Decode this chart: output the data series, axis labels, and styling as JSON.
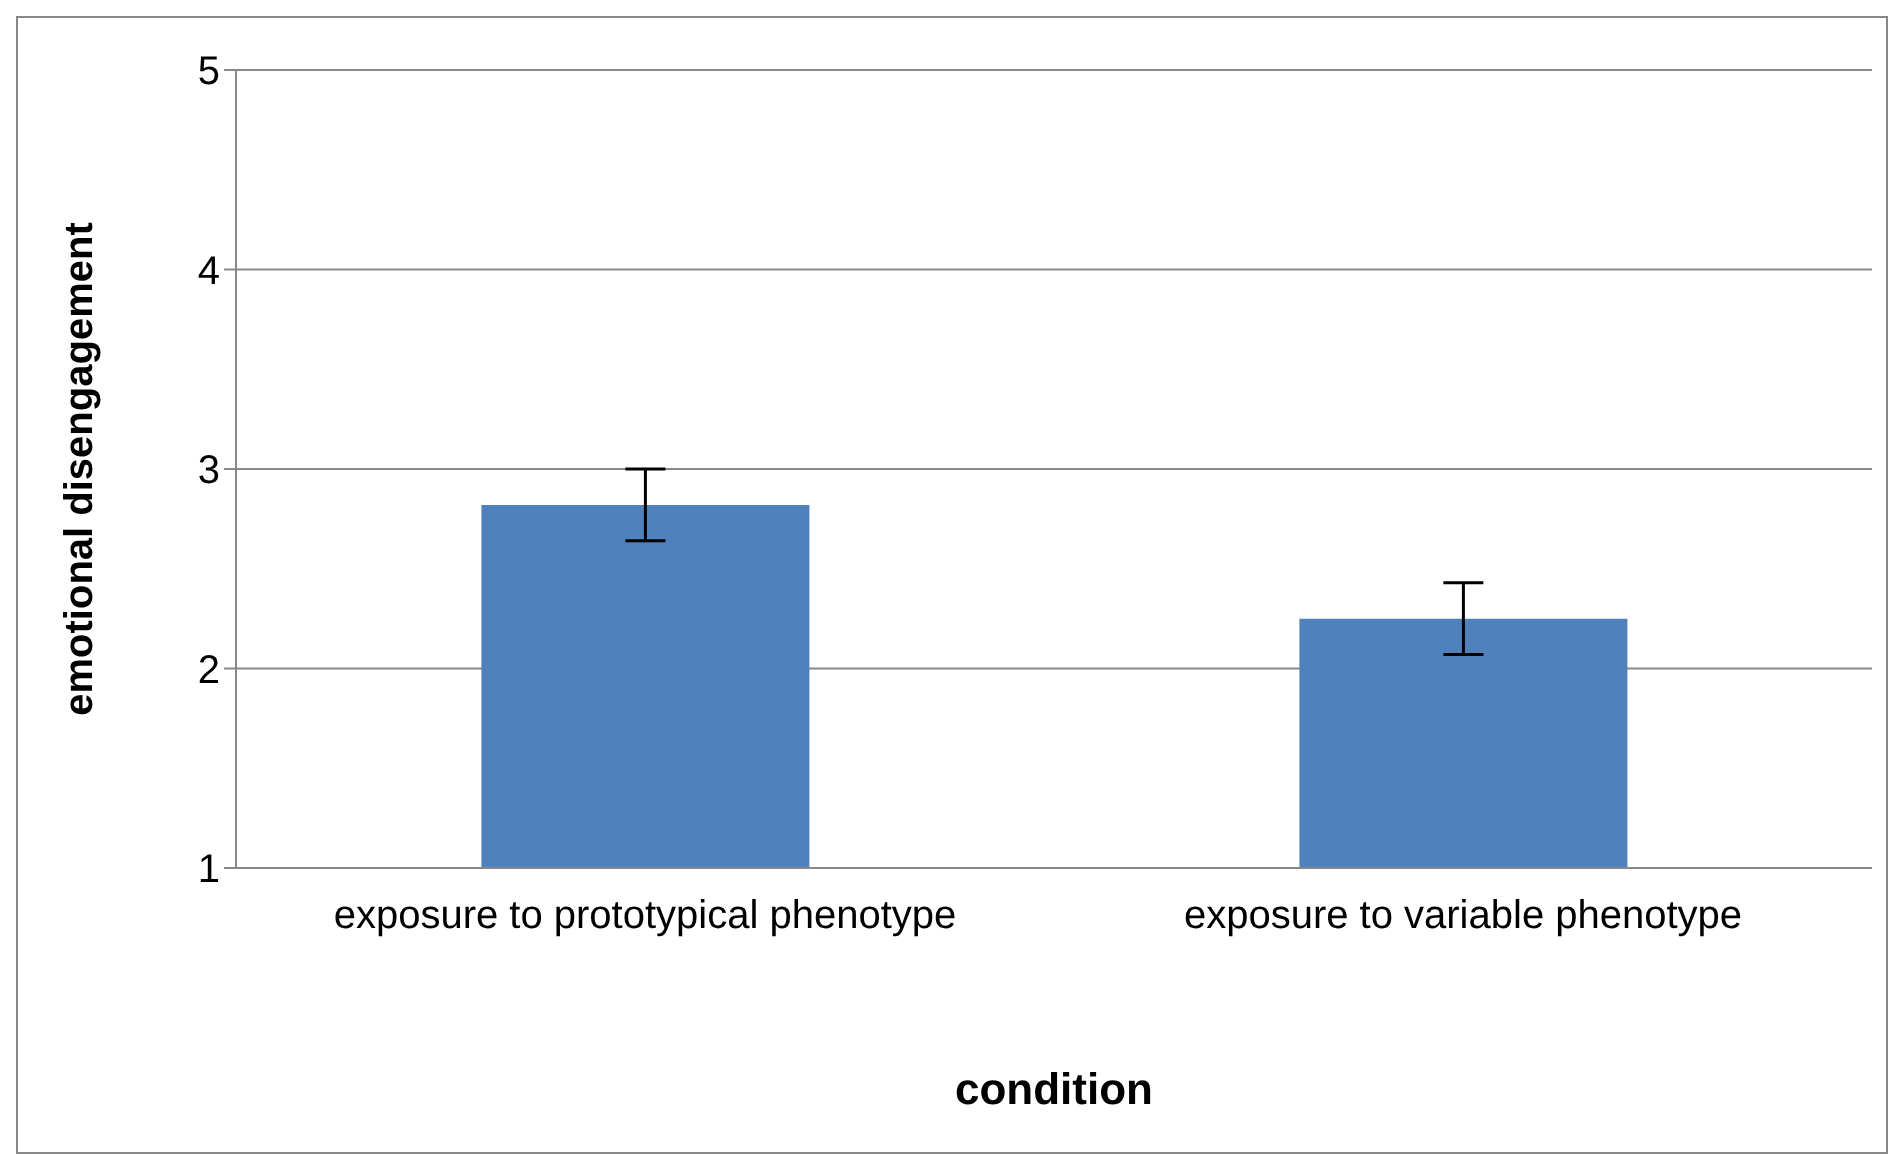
{
  "chart_data": {
    "type": "bar",
    "xlabel": "condition",
    "ylabel": "emotional disengagement",
    "categories": [
      "exposure to prototypical phenotype",
      "exposure to variable phenotype"
    ],
    "values": [
      2.82,
      2.25
    ],
    "errors": [
      0.18,
      0.18
    ],
    "color": "#4f81bd",
    "ylim": [
      1,
      5
    ],
    "yticks": [
      1,
      2,
      3,
      4,
      5
    ],
    "grid": "y"
  }
}
